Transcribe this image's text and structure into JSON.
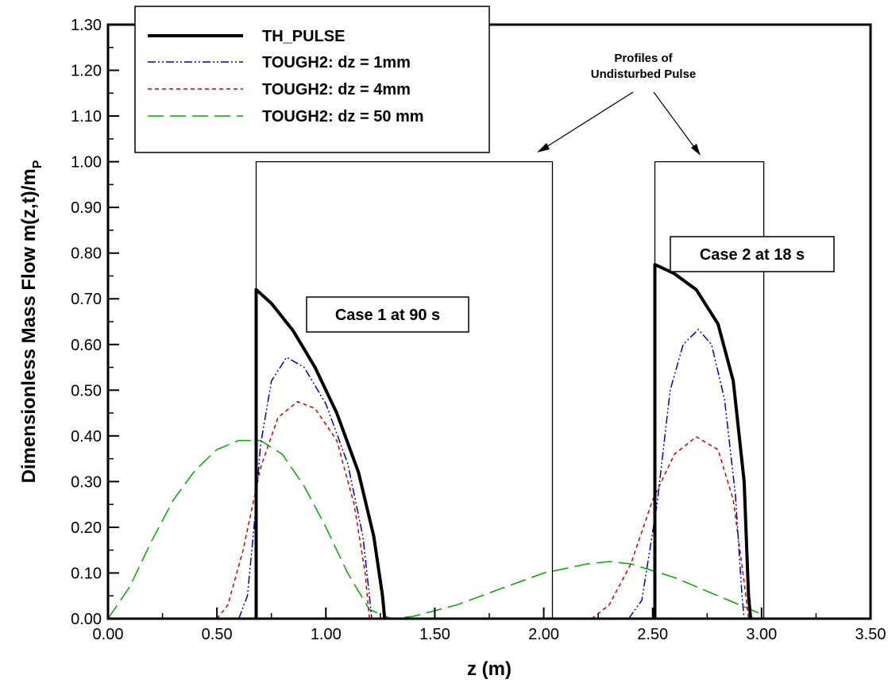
{
  "chart_data": {
    "type": "line",
    "xlabel": "z (m)",
    "ylabel": "Dimensionless Mass Flow m(z,t)/m",
    "ylabel_subscript": "P",
    "xlim": [
      0.0,
      3.5
    ],
    "ylim": [
      0.0,
      1.3
    ],
    "xticks": [
      "0.00",
      "0.50",
      "1.00",
      "1.50",
      "2.00",
      "2.50",
      "3.00",
      "3.50"
    ],
    "yticks": [
      "0.00",
      "0.10",
      "0.20",
      "0.30",
      "0.40",
      "0.50",
      "0.60",
      "0.70",
      "0.80",
      "0.90",
      "1.00",
      "1.10",
      "1.20",
      "1.30"
    ],
    "grid": false,
    "legend_position": "top-left",
    "series": [
      {
        "name": "TH_PULSE",
        "color": "#000000",
        "style": "solid",
        "points": [
          [
            0.68,
            0.0
          ],
          [
            0.68,
            0.72
          ],
          [
            0.75,
            0.69
          ],
          [
            0.85,
            0.63
          ],
          [
            0.95,
            0.55
          ],
          [
            1.05,
            0.45
          ],
          [
            1.15,
            0.32
          ],
          [
            1.22,
            0.18
          ],
          [
            1.26,
            0.05
          ],
          [
            1.27,
            0.0
          ],
          null,
          [
            2.51,
            0.0
          ],
          [
            2.51,
            0.775
          ],
          [
            2.6,
            0.755
          ],
          [
            2.7,
            0.72
          ],
          [
            2.8,
            0.645
          ],
          [
            2.87,
            0.52
          ],
          [
            2.92,
            0.3
          ],
          [
            2.94,
            0.05
          ],
          [
            2.95,
            0.0
          ]
        ]
      },
      {
        "name": "TOUGH2: dz = 1mm",
        "color": "#0000cc",
        "style": "dashdotdot",
        "points": [
          [
            0.6,
            0.0
          ],
          [
            0.64,
            0.05
          ],
          [
            0.67,
            0.2
          ],
          [
            0.7,
            0.38
          ],
          [
            0.75,
            0.52
          ],
          [
            0.82,
            0.572
          ],
          [
            0.9,
            0.55
          ],
          [
            1.0,
            0.47
          ],
          [
            1.1,
            0.34
          ],
          [
            1.17,
            0.18
          ],
          [
            1.2,
            0.05
          ],
          [
            1.21,
            0.0
          ],
          null,
          [
            2.39,
            0.0
          ],
          [
            2.45,
            0.04
          ],
          [
            2.52,
            0.25
          ],
          [
            2.58,
            0.5
          ],
          [
            2.64,
            0.6
          ],
          [
            2.71,
            0.633
          ],
          [
            2.77,
            0.6
          ],
          [
            2.83,
            0.48
          ],
          [
            2.88,
            0.27
          ],
          [
            2.91,
            0.05
          ],
          [
            2.92,
            0.0
          ]
        ]
      },
      {
        "name": "TOUGH2: dz = 4mm",
        "color": "#cc0000",
        "style": "short-dash",
        "points": [
          [
            0.5,
            0.0
          ],
          [
            0.55,
            0.03
          ],
          [
            0.62,
            0.15
          ],
          [
            0.7,
            0.33
          ],
          [
            0.78,
            0.44
          ],
          [
            0.87,
            0.475
          ],
          [
            0.95,
            0.46
          ],
          [
            1.05,
            0.39
          ],
          [
            1.13,
            0.25
          ],
          [
            1.18,
            0.1
          ],
          [
            1.2,
            0.0
          ],
          null,
          [
            2.22,
            0.0
          ],
          [
            2.3,
            0.03
          ],
          [
            2.4,
            0.12
          ],
          [
            2.5,
            0.26
          ],
          [
            2.6,
            0.36
          ],
          [
            2.7,
            0.398
          ],
          [
            2.8,
            0.37
          ],
          [
            2.87,
            0.26
          ],
          [
            2.92,
            0.08
          ],
          [
            2.94,
            0.0
          ]
        ]
      },
      {
        "name": "TOUGH2: dz = 50 mm",
        "color": "#00aa00",
        "style": "long-dash",
        "points": [
          [
            0.0,
            0.0
          ],
          [
            0.1,
            0.07
          ],
          [
            0.2,
            0.17
          ],
          [
            0.3,
            0.26
          ],
          [
            0.4,
            0.325
          ],
          [
            0.5,
            0.37
          ],
          [
            0.6,
            0.39
          ],
          [
            0.7,
            0.39
          ],
          [
            0.8,
            0.36
          ],
          [
            0.9,
            0.29
          ],
          [
            1.0,
            0.2
          ],
          [
            1.1,
            0.1
          ],
          [
            1.2,
            0.02
          ],
          [
            1.3,
            0.0
          ],
          [
            1.4,
            0.005
          ],
          [
            1.6,
            0.03
          ],
          [
            1.8,
            0.065
          ],
          [
            2.0,
            0.1
          ],
          [
            2.2,
            0.12
          ],
          [
            2.3,
            0.125
          ],
          [
            2.4,
            0.12
          ],
          [
            2.6,
            0.09
          ],
          [
            2.8,
            0.05
          ],
          [
            2.95,
            0.02
          ],
          [
            3.0,
            0.01
          ]
        ]
      },
      {
        "name": "",
        "color": "#000000",
        "style": "thin",
        "points": [
          [
            0.68,
            0.0
          ],
          [
            0.68,
            1.0
          ],
          [
            2.04,
            1.0
          ],
          [
            2.04,
            0.0
          ],
          null,
          [
            2.51,
            0.0
          ],
          [
            2.51,
            1.0
          ],
          [
            3.01,
            1.0
          ],
          [
            3.01,
            0.0
          ]
        ]
      }
    ],
    "annotations": {
      "profiles_line1": "Profiles of",
      "profiles_line2": "Undisturbed Pulse",
      "case1": "Case 1 at 90 s",
      "case2": "Case 2 at 18 s"
    }
  }
}
